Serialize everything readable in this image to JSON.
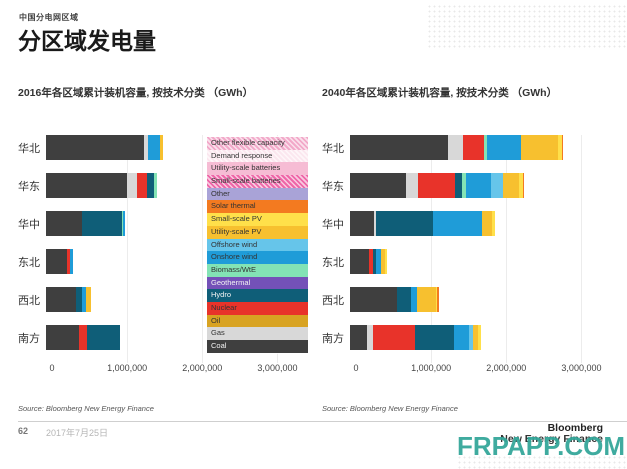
{
  "header": {
    "eyebrow": "中国分电网区域",
    "title": "分区域发电量"
  },
  "footer": {
    "page_number": "62",
    "date": "2017年7月25日"
  },
  "logo": {
    "line1": "Bloomberg",
    "line2": "New Energy Finance"
  },
  "watermark": {
    "text": "FRPAPP.COM",
    "color": "#35a79a"
  },
  "palette": {
    "Coal": "#3f3f3f",
    "Gas": "#d8d8d8",
    "Oil": "#d8a322",
    "Nuclear": "#e8332a",
    "Hydro": "#0f5e78",
    "Geothermal": "#7451b8",
    "Biomass/WtE": "#83e3b5",
    "Onshore wind": "#1f9cd8",
    "Offshore wind": "#66c5ea",
    "Utility-scale PV": "#f7c02f",
    "Small-scale PV": "#ffe04a",
    "Solar thermal": "#f37a20",
    "Other": "#a9a3d7",
    "Small-scale batteries": "#ee67a8",
    "Utility-scale batteries": "#f6bcd4",
    "Demand response": "#fbe7ef",
    "Other flexible capacity": "#f2a9c9"
  },
  "legend": {
    "items": [
      {
        "label": "Other flexible capacity",
        "color": "#f2a9c9",
        "hatch": true
      },
      {
        "label": "Demand response",
        "color": "#fbe7ef",
        "hatch": true
      },
      {
        "label": "Utility-scale batteries",
        "color": "#f6bcd4"
      },
      {
        "label": "Small-scale batteries",
        "color": "#ee67a8",
        "hatch": true
      },
      {
        "label": "Other",
        "color": "#a9a3d7"
      },
      {
        "label": "Solar thermal",
        "color": "#f37a20"
      },
      {
        "label": "Small-scale PV",
        "color": "#ffe04a"
      },
      {
        "label": "Utility-scale PV",
        "color": "#f7c02f"
      },
      {
        "label": "Offshore wind",
        "color": "#66c5ea"
      },
      {
        "label": "Onshore wind",
        "color": "#1f9cd8"
      },
      {
        "label": "Biomass/WtE",
        "color": "#83e3b5"
      },
      {
        "label": "Geothermal",
        "color": "#7451b8",
        "light_text": true
      },
      {
        "label": "Hydro",
        "color": "#0f5e78",
        "light_text": true
      },
      {
        "label": "Nuclear",
        "color": "#e8332a"
      },
      {
        "label": "Oil",
        "color": "#d8a322"
      },
      {
        "label": "Gas",
        "color": "#d8d8d8"
      },
      {
        "label": "Coal",
        "color": "#3f3f3f",
        "light_text": true
      }
    ]
  },
  "chart_data": [
    {
      "type": "bar",
      "orientation": "horizontal-stacked",
      "title": "2016年各区域累计装机容量, 按技术分类 （GWh）",
      "source": "Source: Bloomberg New Energy Finance",
      "categories": [
        "华北",
        "华东",
        "华中",
        "东北",
        "西北",
        "南方"
      ],
      "x_ticks": [
        "0",
        "1,000,000",
        "2,000,000",
        "3,000,000"
      ],
      "tick_values": [
        0,
        1000000,
        2000000,
        3000000
      ],
      "xmax": 3300000,
      "grid": true,
      "series": [
        {
          "name": "Coal",
          "values": [
            1310000,
            1080000,
            480000,
            280000,
            400000,
            440000
          ]
        },
        {
          "name": "Gas",
          "values": [
            45000,
            130000,
            0,
            0,
            0,
            0
          ]
        },
        {
          "name": "Nuclear",
          "values": [
            0,
            130000,
            0,
            35000,
            0,
            110000
          ]
        },
        {
          "name": "Hydro",
          "values": [
            0,
            95000,
            530000,
            0,
            80000,
            430000
          ]
        },
        {
          "name": "Biomass/WtE",
          "values": [
            0,
            40000,
            20000,
            0,
            0,
            0
          ]
        },
        {
          "name": "Onshore wind",
          "values": [
            160000,
            0,
            20000,
            50000,
            55000,
            0
          ]
        },
        {
          "name": "Utility-scale PV",
          "values": [
            45000,
            0,
            0,
            0,
            70000,
            0
          ]
        }
      ]
    },
    {
      "type": "bar",
      "orientation": "horizontal-stacked",
      "title": "2040年各区域累计装机容量, 按技术分类 （GWh）",
      "source": "Source: Bloomberg New Energy Finance",
      "categories": [
        "华北",
        "华东",
        "华中",
        "东北",
        "西北",
        "南方"
      ],
      "x_ticks": [
        "0",
        "1,000,000",
        "2,000,000",
        "3,000,000"
      ],
      "tick_values": [
        0,
        1000000,
        2000000,
        3000000
      ],
      "xmax": 3300000,
      "grid": true,
      "series": [
        {
          "name": "Coal",
          "values": [
            1300000,
            750000,
            320000,
            250000,
            620000,
            220000
          ]
        },
        {
          "name": "Gas",
          "values": [
            200000,
            150000,
            20000,
            0,
            0,
            90000
          ]
        },
        {
          "name": "Nuclear",
          "values": [
            290000,
            500000,
            0,
            60000,
            0,
            550000
          ]
        },
        {
          "name": "Hydro",
          "values": [
            0,
            90000,
            770000,
            30000,
            190000,
            520000
          ]
        },
        {
          "name": "Biomass/WtE",
          "values": [
            40000,
            50000,
            0,
            0,
            0,
            0
          ]
        },
        {
          "name": "Onshore wind",
          "values": [
            440000,
            340000,
            640000,
            70000,
            80000,
            210000
          ]
        },
        {
          "name": "Offshore wind",
          "values": [
            0,
            150000,
            0,
            0,
            0,
            50000
          ]
        },
        {
          "name": "Utility-scale PV",
          "values": [
            500000,
            220000,
            140000,
            60000,
            250000,
            70000
          ]
        },
        {
          "name": "Small-scale PV",
          "values": [
            50000,
            50000,
            40000,
            20000,
            20000,
            30000
          ]
        },
        {
          "name": "Solar thermal",
          "values": [
            20000,
            20000,
            0,
            0,
            20000,
            0
          ]
        }
      ]
    }
  ]
}
